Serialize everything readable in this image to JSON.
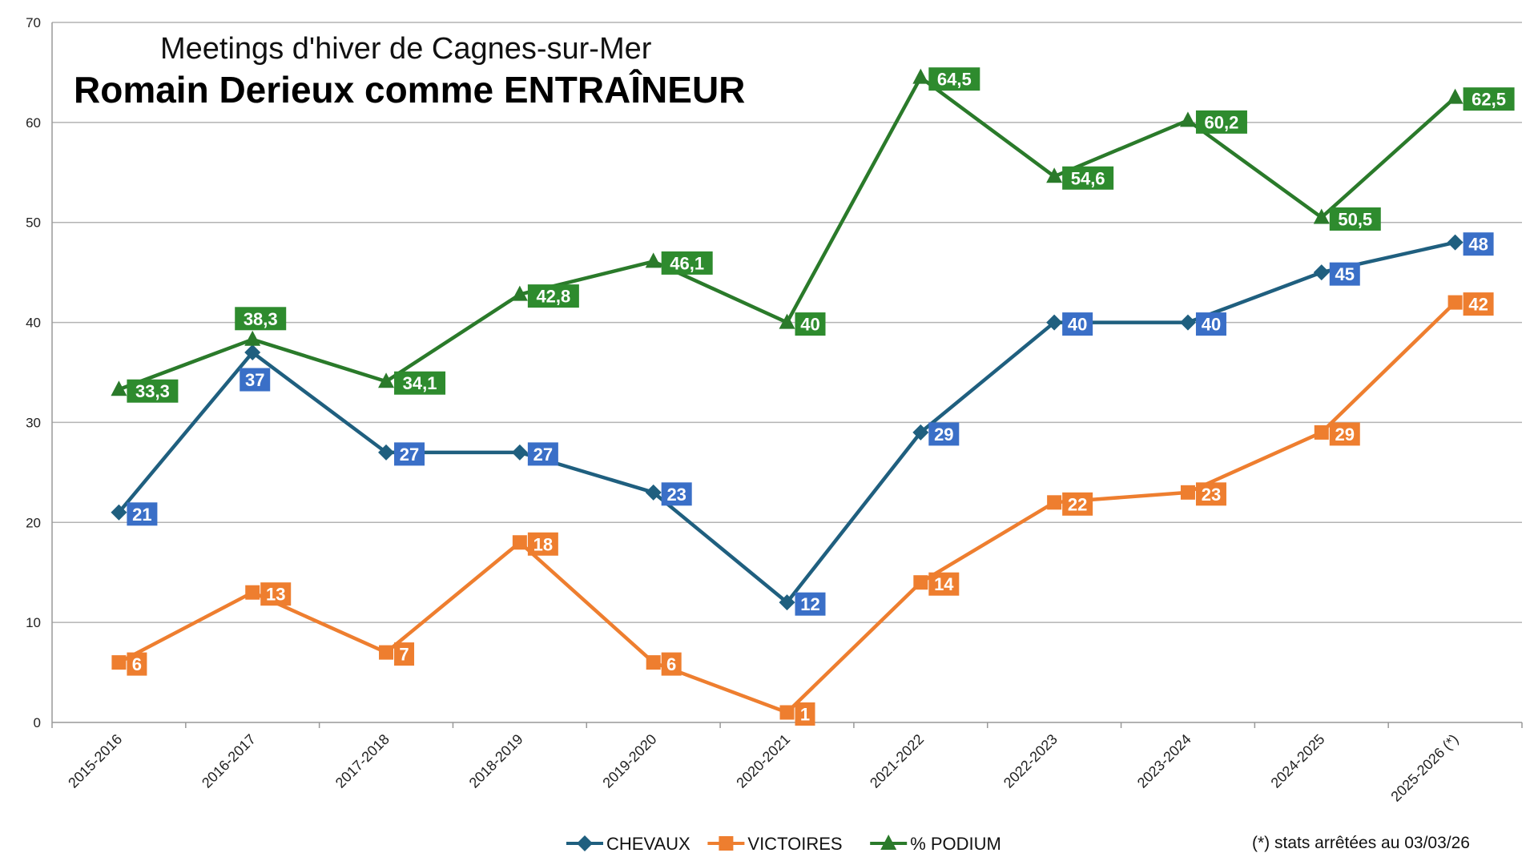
{
  "chart_data": {
    "type": "line",
    "subtitle": "Meetings d'hiver de Cagnes-sur-Mer",
    "title": "Romain Derieux comme ENTRAÎNEUR",
    "xlabel": "",
    "ylabel": "",
    "ylim": [
      0,
      70
    ],
    "yticks": [
      0,
      10,
      20,
      30,
      40,
      50,
      60,
      70
    ],
    "grid": true,
    "legend_position": "bottom",
    "categories": [
      "2015-2016",
      "2016-2017",
      "2017-2018",
      "2018-2019",
      "2019-2020",
      "2020-2021",
      "2021-2022",
      "2022-2023",
      "2023-2024",
      "2024-2025",
      "2025-2026 (*)"
    ],
    "series": [
      {
        "name": "CHEVAUX",
        "color": "#1f5f7f",
        "label_color": "#3a6fc7",
        "marker": "diamond",
        "values": [
          21,
          37,
          27,
          27,
          23,
          12,
          29,
          40,
          40,
          45,
          48
        ],
        "labels": [
          "21",
          "37",
          "27",
          "27",
          "23",
          "12",
          "29",
          "40",
          "40",
          "45",
          "48"
        ]
      },
      {
        "name": "VICTOIRES",
        "color": "#ee7e2f",
        "label_color": "#ee7e2f",
        "marker": "square",
        "values": [
          6,
          13,
          7,
          18,
          6,
          1,
          14,
          22,
          23,
          29,
          42
        ],
        "labels": [
          "6",
          "13",
          "7",
          "18",
          "6",
          "1",
          "14",
          "22",
          "23",
          "29",
          "42"
        ]
      },
      {
        "name": "% PODIUM",
        "color": "#2a7a2a",
        "label_color": "#2e8b2e",
        "marker": "triangle",
        "values": [
          33.3,
          38.3,
          34.1,
          42.8,
          46.1,
          40,
          64.5,
          54.6,
          60.2,
          50.5,
          62.5
        ],
        "labels": [
          "33,3",
          "38,3",
          "34,1",
          "42,8",
          "46,1",
          "40",
          "64,5",
          "54,6",
          "60,2",
          "50,5",
          "62,5"
        ]
      }
    ],
    "footnote": "(*) stats arrêtées au 03/03/26"
  }
}
